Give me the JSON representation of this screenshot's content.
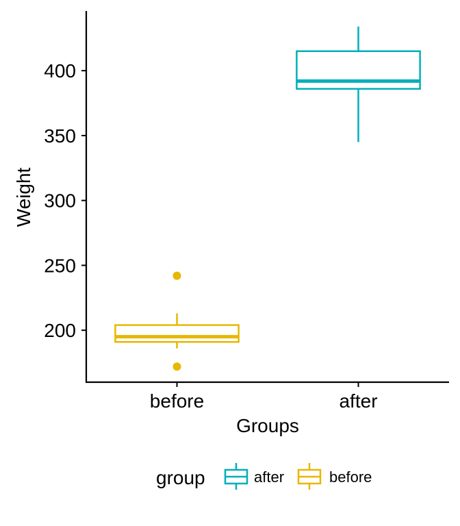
{
  "chart_data": {
    "type": "box",
    "xlabel": "Groups",
    "ylabel": "Weight",
    "ylim": [
      160,
      446
    ],
    "yticks": [
      200,
      250,
      300,
      350,
      400
    ],
    "categories": [
      "before",
      "after"
    ],
    "series": [
      {
        "name": "before",
        "color": "#E7B800",
        "whisker_low": 186,
        "q1": 191,
        "median": 195,
        "q3": 204,
        "whisker_high": 213,
        "outliers": [
          172,
          242
        ]
      },
      {
        "name": "after",
        "color": "#00AFBB",
        "whisker_low": 345,
        "q1": 386,
        "median": 392,
        "q3": 415,
        "whisker_high": 434,
        "outliers": []
      }
    ],
    "legend": {
      "title": "group",
      "position": "bottom",
      "items": [
        {
          "label": "after",
          "color": "#00AFBB"
        },
        {
          "label": "before",
          "color": "#E7B800"
        }
      ]
    },
    "grid": false
  }
}
